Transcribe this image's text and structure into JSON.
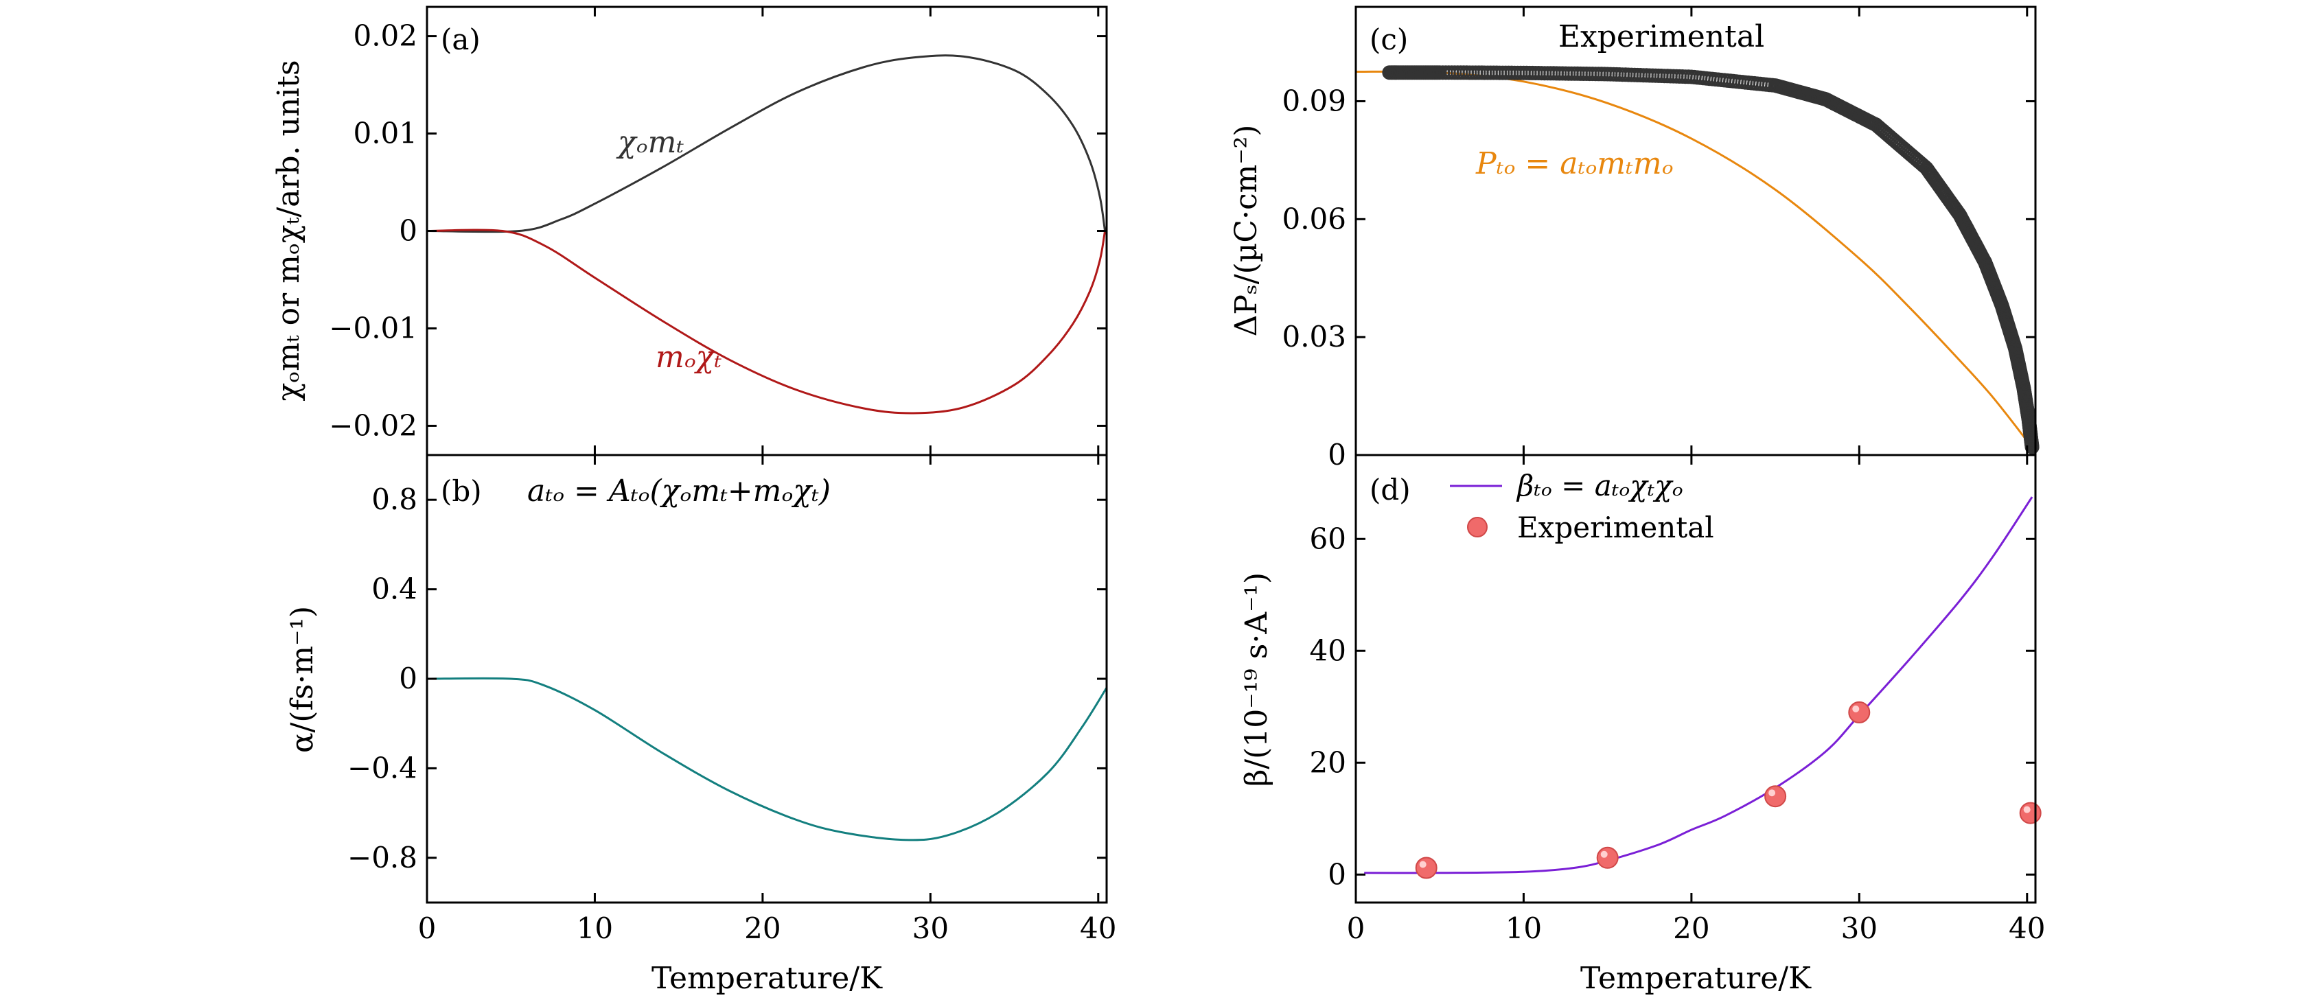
{
  "colors": {
    "chi_m": "#333333",
    "m_chi": "#b01818",
    "alpha": "#137f7f",
    "P_to": "#e8870e",
    "exp_c": "#333333",
    "beta": "#7a1fd6",
    "exp_d": "#f06a6a"
  },
  "chart_data": [
    {
      "panel": "a",
      "type": "line",
      "panel_label": "(a)",
      "xlim": [
        0,
        40.5
      ],
      "ylim": [
        -0.023,
        0.023
      ],
      "xticks": [
        0,
        10,
        20,
        30,
        40
      ],
      "yticks": [
        -0.02,
        -0.01,
        0,
        0.01,
        0.02
      ],
      "ytick_labels": [
        "−0.02",
        "−0.01",
        "0",
        "0.01",
        "0.02"
      ],
      "ylabel": "χₒmₜ or mₒχₜ/arb. units",
      "series": [
        {
          "name": "χₒmₜ",
          "color": "chi_m",
          "x": [
            0,
            5.5,
            8,
            10,
            14,
            18,
            22,
            26,
            29,
            32,
            35,
            37,
            38.5,
            39.5,
            40.1,
            40.4
          ],
          "y": [
            0,
            0,
            0.0012,
            0.0028,
            0.0065,
            0.0105,
            0.0142,
            0.0168,
            0.0178,
            0.0179,
            0.0165,
            0.014,
            0.0108,
            0.0072,
            0.0035,
            0
          ]
        },
        {
          "name": "mₒχₜ",
          "color": "m_chi",
          "x": [
            0,
            4.5,
            7,
            10,
            14,
            18,
            22,
            26,
            29,
            32,
            35,
            37,
            38.5,
            39.5,
            40.1,
            40.4
          ],
          "y": [
            0,
            0,
            -0.0015,
            -0.0048,
            -0.0092,
            -0.0132,
            -0.0163,
            -0.0182,
            -0.0187,
            -0.0181,
            -0.0158,
            -0.0128,
            -0.0095,
            -0.0062,
            -0.003,
            0
          ]
        }
      ],
      "annotations": [
        {
          "text": "χₒmₜ",
          "color": "chi_m"
        },
        {
          "text": "mₒχₜ",
          "color": "m_chi"
        }
      ]
    },
    {
      "panel": "b",
      "type": "line",
      "panel_label": "(b)",
      "formula": "aₜₒ = Aₜₒ(χₒmₜ+mₒχₜ)",
      "xlim": [
        0,
        40.5
      ],
      "ylim": [
        -1.0,
        1.0
      ],
      "xticks": [
        0,
        10,
        20,
        30,
        40
      ],
      "yticks": [
        -0.8,
        -0.4,
        0,
        0.4,
        0.8
      ],
      "ytick_labels": [
        "−0.8",
        "−0.4",
        "0",
        "0.4",
        "0.8"
      ],
      "xlabel": "Temperature/K",
      "ylabel": "α/(fs·m⁻¹)",
      "series": [
        {
          "name": "alpha",
          "color": "alpha",
          "x": [
            0,
            5,
            7,
            10,
            14,
            18,
            22,
            25,
            28.5,
            31,
            34,
            37,
            39,
            40.5
          ],
          "y": [
            0,
            0,
            -0.03,
            -0.14,
            -0.33,
            -0.5,
            -0.63,
            -0.69,
            -0.72,
            -0.7,
            -0.6,
            -0.42,
            -0.22,
            -0.04
          ]
        }
      ]
    },
    {
      "panel": "c",
      "type": "scatter+line",
      "panel_label": "(c)",
      "title": "Experimental",
      "xlim": [
        0,
        40.5
      ],
      "ylim": [
        0,
        0.114
      ],
      "xticks": [
        0,
        10,
        20,
        30,
        40
      ],
      "yticks": [
        0,
        0.03,
        0.06,
        0.09
      ],
      "ytick_labels": [
        "0",
        "0.03",
        "0.06",
        "0.09"
      ],
      "ylabel": "ΔPₛ/(µC·cm⁻²)",
      "series": [
        {
          "name": "Pₜₒ = aₜₒmₜmₒ",
          "color": "P_to",
          "kind": "line",
          "x": [
            0,
            5,
            10,
            15,
            20,
            25,
            30,
            33,
            36,
            38,
            40.2
          ],
          "y": [
            0.0975,
            0.0973,
            0.095,
            0.0895,
            0.0805,
            0.0675,
            0.05,
            0.0375,
            0.024,
            0.0145,
            0.0025
          ]
        },
        {
          "name": "Experimental",
          "color": "exp_c",
          "kind": "scatter",
          "x": [
            2,
            5,
            10,
            15,
            20,
            25,
            28,
            31,
            34,
            36,
            37.5,
            38.5,
            39.3,
            39.8,
            40.1,
            40.3
          ],
          "y": [
            0.0973,
            0.0973,
            0.0972,
            0.0969,
            0.0962,
            0.094,
            0.0905,
            0.084,
            0.073,
            0.061,
            0.049,
            0.038,
            0.027,
            0.017,
            0.009,
            0.002
          ]
        }
      ],
      "annotation": "Pₜₒ = aₜₒmₜmₒ"
    },
    {
      "panel": "d",
      "type": "scatter+line",
      "panel_label": "(d)",
      "xlim": [
        0,
        40.5
      ],
      "ylim": [
        -5,
        75
      ],
      "xticks": [
        0,
        10,
        20,
        30,
        40
      ],
      "yticks": [
        0,
        20,
        40,
        60
      ],
      "ytick_labels": [
        "0",
        "20",
        "40",
        "60"
      ],
      "xlabel": "Temperature/K",
      "ylabel": "β/(10⁻¹⁹ s·A⁻¹)",
      "legend_position": "top-left",
      "series": [
        {
          "name": "βₜₒ = aₜₒχₜχₒ",
          "color": "beta",
          "kind": "line",
          "x": [
            0.5,
            5,
            10,
            13,
            15,
            18,
            20,
            22,
            25,
            28,
            30,
            33,
            36,
            38,
            40.3
          ],
          "y": [
            0.3,
            0.3,
            0.5,
            1.2,
            2.5,
            5.3,
            8.0,
            10.5,
            15.5,
            22.0,
            28.5,
            38.5,
            49,
            57,
            67.5
          ]
        },
        {
          "name": "Experimental",
          "color": "exp_d",
          "kind": "scatter",
          "x": [
            4.2,
            15,
            25,
            30,
            40.2
          ],
          "y": [
            1.2,
            3.0,
            14.0,
            29.0,
            11.0
          ]
        }
      ]
    }
  ]
}
